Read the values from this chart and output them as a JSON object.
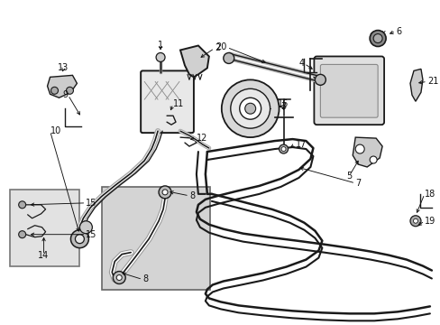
{
  "bg_color": "#ffffff",
  "part_color": "#1a1a1a",
  "light_fill": "#e8e8e8",
  "mid_fill": "#cccccc",
  "inset1_fill": "#e4e4e4",
  "inset2_fill": "#d8d8d8",
  "lw_main": 1.4,
  "lw_hose": 2.0,
  "lw_thin": 0.8
}
